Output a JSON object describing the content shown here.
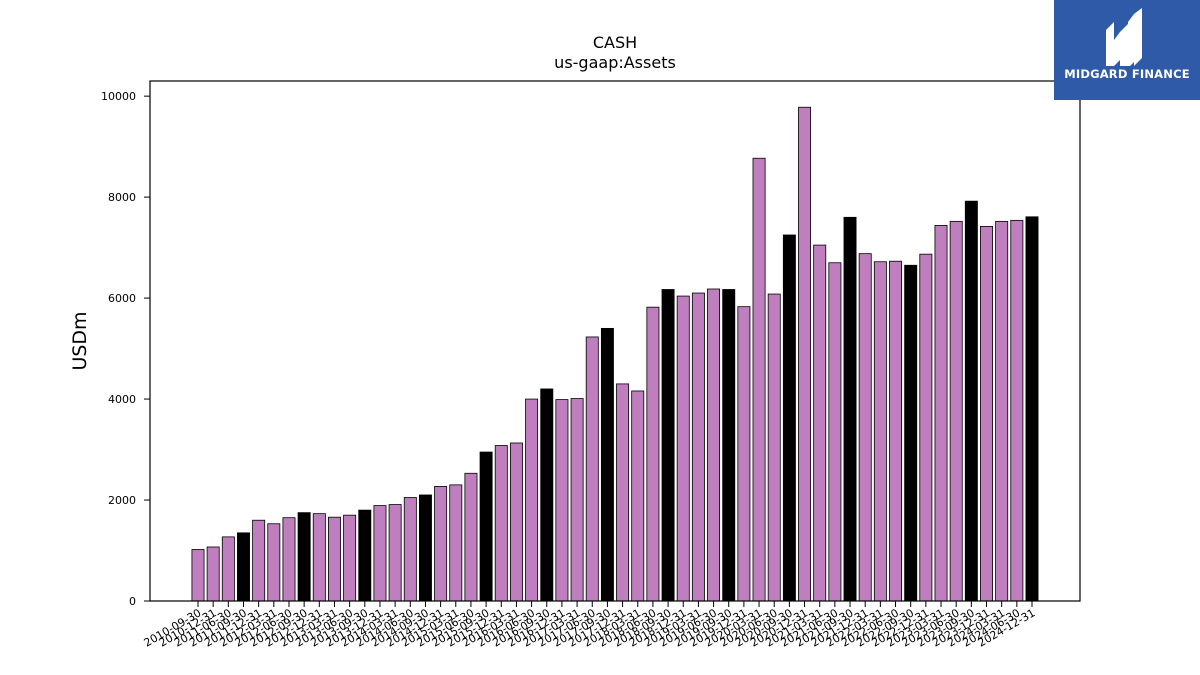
{
  "chart_data": {
    "type": "bar",
    "title": "CASH",
    "subtitle": "us-gaap:Assets",
    "xlabel": "",
    "ylabel": "USDm",
    "ylim": [
      0,
      10300
    ],
    "yticks": [
      0,
      2000,
      4000,
      6000,
      8000,
      10000
    ],
    "grid": false,
    "colors": {
      "default": "#bf7fbf",
      "highlight": "#000000",
      "edge": "#000000"
    },
    "categories": [
      "2010-09-30",
      "2010-12-31",
      "2011-06-30",
      "2011-09-30",
      "2011-12-31",
      "2012-03-31",
      "2012-06-30",
      "2012-09-30",
      "2012-12-31",
      "2013-03-31",
      "2013-06-30",
      "2013-09-30",
      "2013-12-31",
      "2014-03-31",
      "2014-06-30",
      "2014-09-30",
      "2014-12-31",
      "2015-03-31",
      "2015-06-30",
      "2015-09-30",
      "2015-12-31",
      "2016-03-31",
      "2016-06-30",
      "2016-09-30",
      "2016-12-31",
      "2017-03-31",
      "2017-06-30",
      "2017-09-30",
      "2017-12-31",
      "2018-03-31",
      "2018-06-30",
      "2018-09-30",
      "2018-12-31",
      "2019-03-31",
      "2019-06-30",
      "2019-09-30",
      "2019-12-31",
      "2020-03-31",
      "2020-06-30",
      "2020-09-30",
      "2020-12-31",
      "2021-03-31",
      "2021-06-30",
      "2021-09-30",
      "2021-12-31",
      "2022-03-31",
      "2022-06-30",
      "2022-09-30",
      "2022-12-31",
      "2023-03-31",
      "2023-06-30",
      "2023-09-30",
      "2023-12-31",
      "2024-03-31",
      "2024-06-30",
      "2024-12-31"
    ],
    "values": [
      1020,
      1070,
      1270,
      1350,
      1600,
      1530,
      1650,
      1750,
      1730,
      1660,
      1700,
      1800,
      1890,
      1910,
      2050,
      2100,
      2270,
      2300,
      2530,
      2950,
      3080,
      3130,
      4000,
      4200,
      3990,
      4010,
      5230,
      5400,
      4300,
      4160,
      5820,
      6170,
      6040,
      6100,
      6180,
      6170,
      5830,
      8770,
      6080,
      7250,
      9780,
      7050,
      6700,
      7600,
      6880,
      6720,
      6730,
      6650,
      6870,
      7440,
      7520,
      7920,
      7420,
      7520,
      7540,
      7610
    ],
    "highlight": [
      false,
      false,
      false,
      true,
      false,
      false,
      false,
      true,
      false,
      false,
      false,
      true,
      false,
      false,
      false,
      true,
      false,
      false,
      false,
      true,
      false,
      false,
      false,
      true,
      false,
      false,
      false,
      true,
      false,
      false,
      false,
      true,
      false,
      false,
      false,
      true,
      false,
      false,
      false,
      true,
      false,
      false,
      false,
      true,
      false,
      false,
      false,
      true,
      false,
      false,
      false,
      true,
      false,
      false,
      false,
      true
    ]
  },
  "brand": {
    "name": "MIDGARD FINANCE",
    "logo_icon": "midgard-mh-monogram-icon"
  }
}
